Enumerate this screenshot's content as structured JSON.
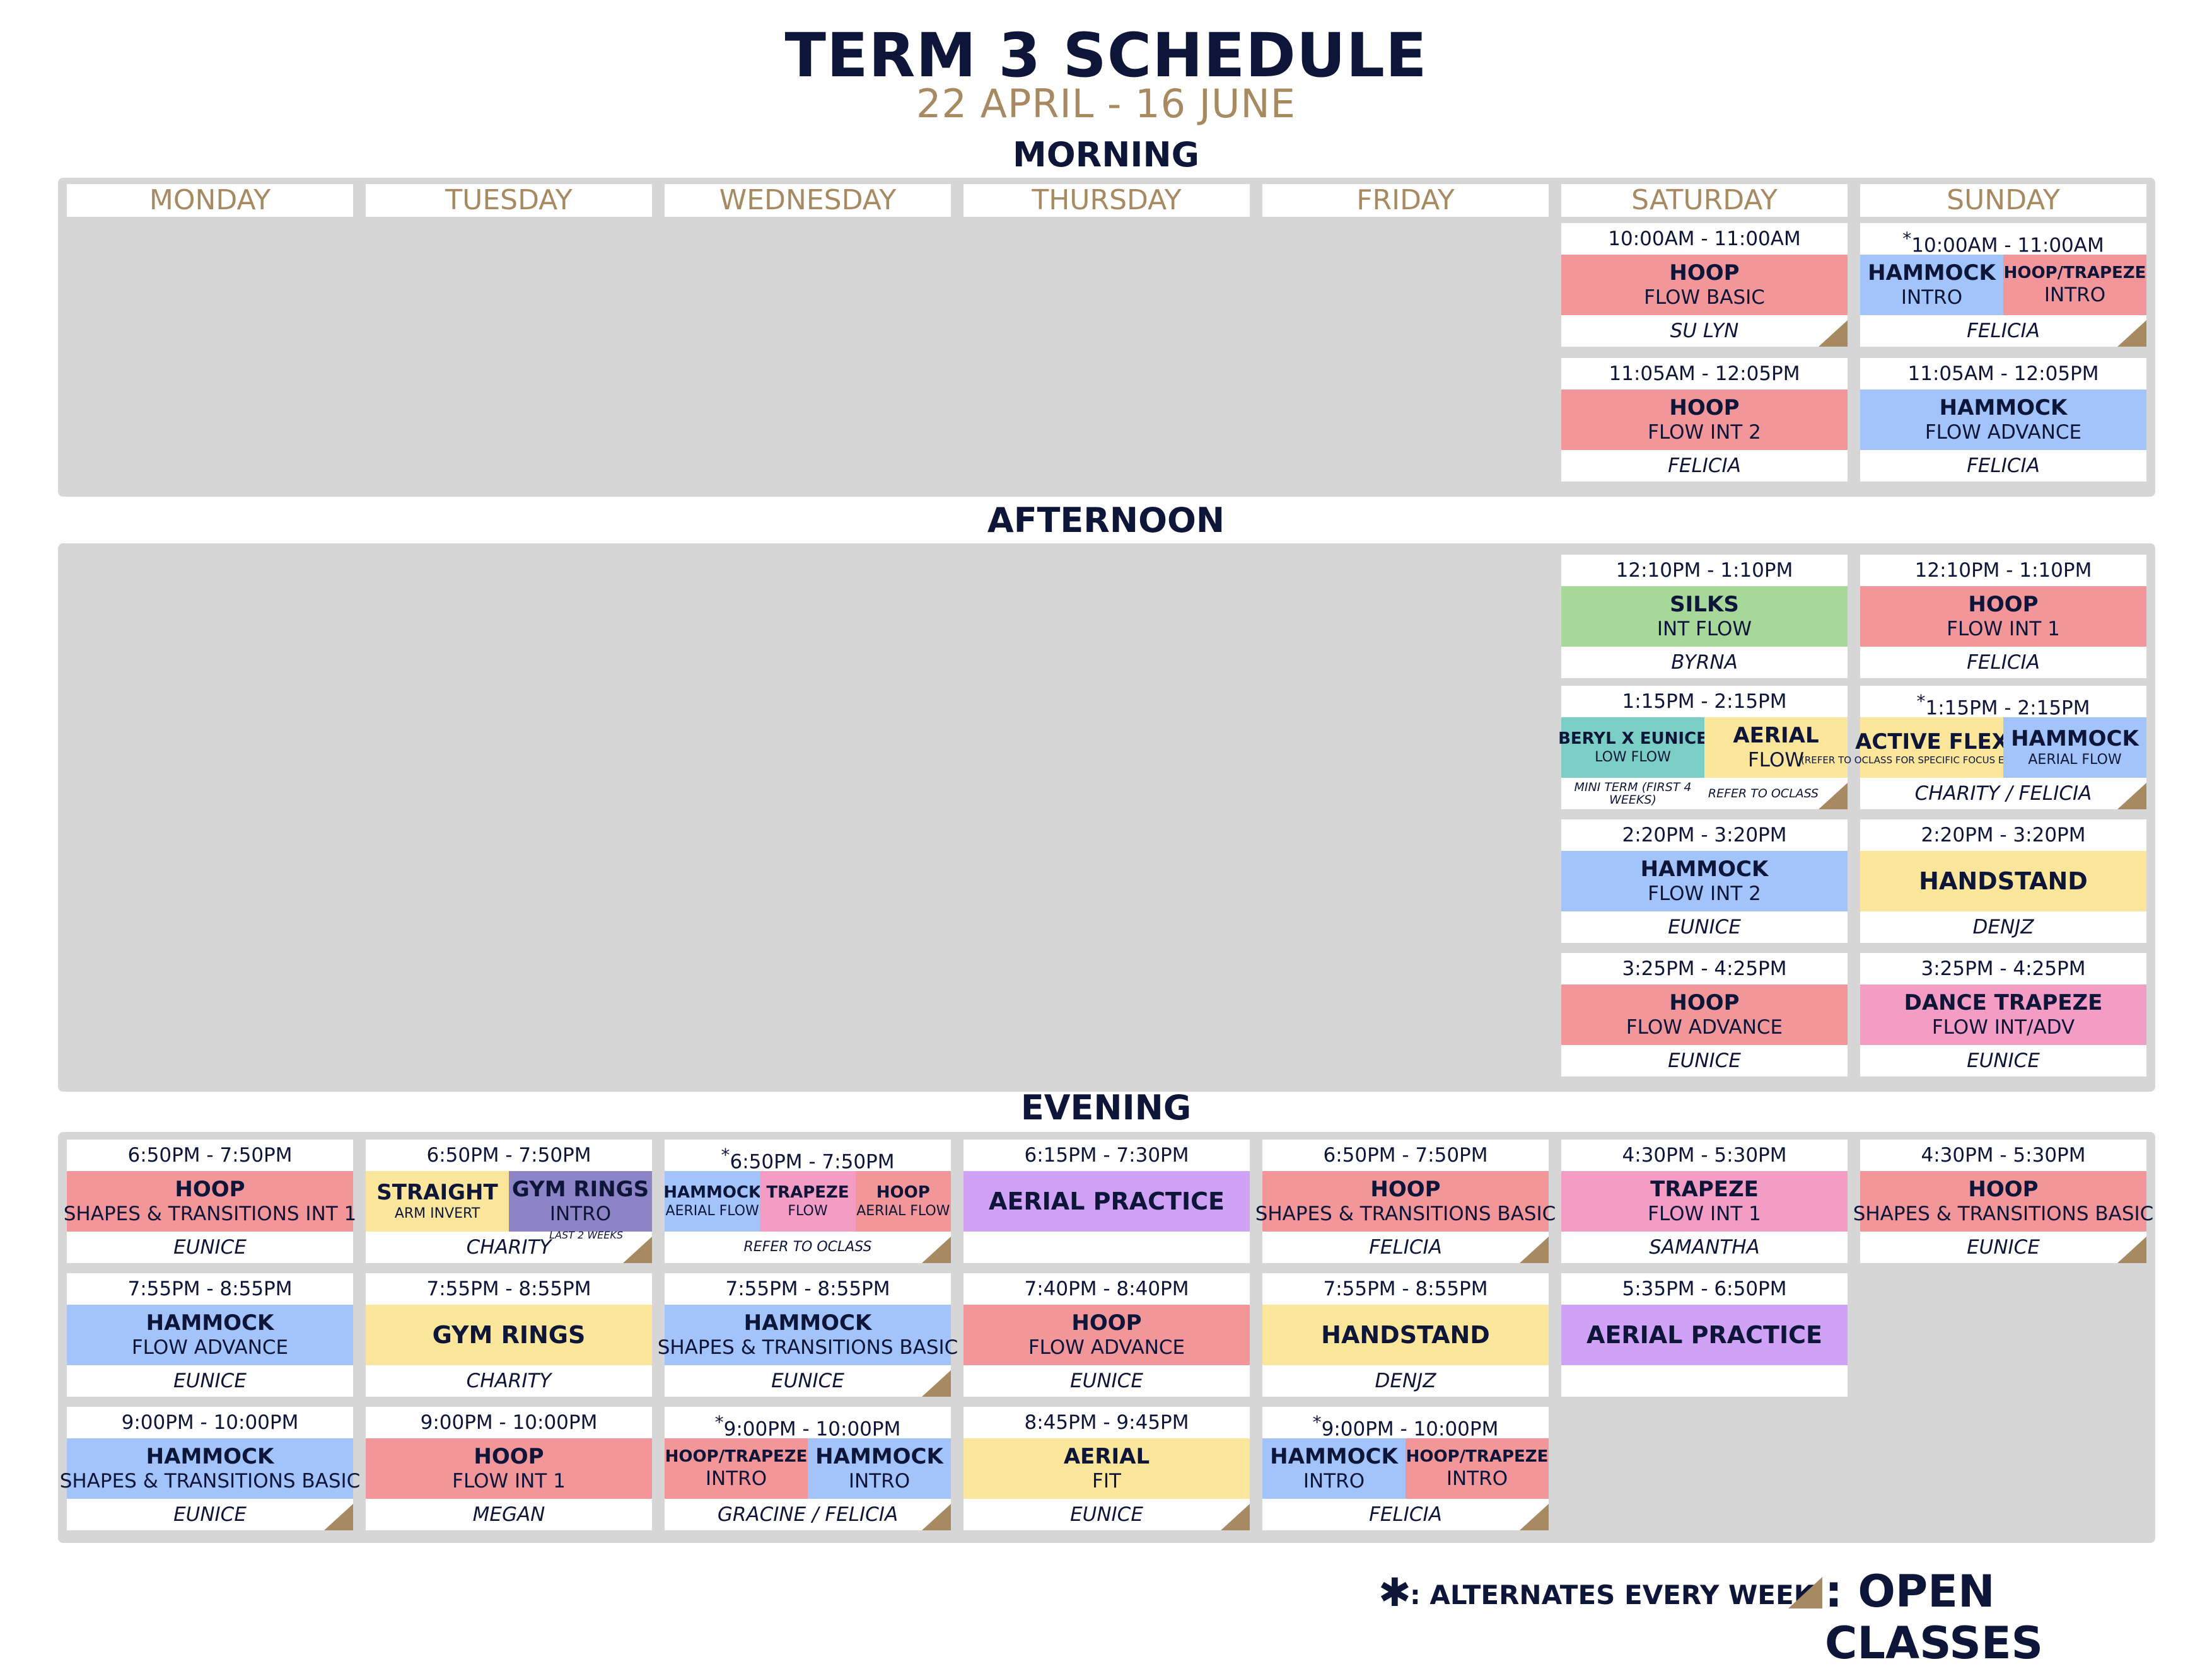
{
  "header": {
    "title": "TERM 3 SCHEDULE",
    "dates": "22 APRIL - 16 JUNE"
  },
  "sections": {
    "morning": "MORNING",
    "afternoon": "AFTERNOON",
    "evening": "EVENING"
  },
  "days": [
    "MONDAY",
    "TUESDAY",
    "WEDNESDAY",
    "THURSDAY",
    "FRIDAY",
    "SATURDAY",
    "SUNDAY"
  ],
  "colors": {
    "navy": "#0d1538",
    "gold": "#a88a62",
    "panel": "#d6d6d6",
    "pink": "#f2969a",
    "green": "#a6d89a",
    "blue": "#a2c4fa",
    "yellow": "#fce69c",
    "teal": "#7acec4",
    "magenta": "#f39cc4",
    "purple": "#cfa2f6",
    "violet": "#8c84c6"
  },
  "classes": [
    {
      "id": "sat-m1",
      "day": "SATURDAY",
      "time": "10:00AM - 11:00AM",
      "instructor": "SU LYN",
      "open": true,
      "segments": [
        {
          "name": "HOOP",
          "level": "FLOW BASIC",
          "color": "pink"
        }
      ]
    },
    {
      "id": "sun-m1",
      "day": "SUNDAY",
      "time": "10:00AM - 11:00AM",
      "alternates": true,
      "instructor": "FELICIA",
      "open": true,
      "segments": [
        {
          "name": "HAMMOCK",
          "level": "INTRO",
          "color": "blue"
        },
        {
          "name": "HOOP/TRAPEZE",
          "level": "INTRO",
          "color": "pink"
        }
      ]
    },
    {
      "id": "sat-m2",
      "day": "SATURDAY",
      "time": "11:05AM - 12:05PM",
      "instructor": "FELICIA",
      "segments": [
        {
          "name": "HOOP",
          "level": "FLOW INT 2",
          "color": "pink"
        }
      ]
    },
    {
      "id": "sun-m2",
      "day": "SUNDAY",
      "time": "11:05AM - 12:05PM",
      "instructor": "FELICIA",
      "segments": [
        {
          "name": "HAMMOCK",
          "level": "FLOW ADVANCE",
          "color": "blue"
        }
      ]
    },
    {
      "id": "sat-a1",
      "day": "SATURDAY",
      "time": "12:10PM - 1:10PM",
      "instructor": "BYRNA",
      "segments": [
        {
          "name": "SILKS",
          "level": "INT FLOW",
          "color": "green"
        }
      ]
    },
    {
      "id": "sun-a1",
      "day": "SUNDAY",
      "time": "12:10PM - 1:10PM",
      "instructor": "FELICIA",
      "segments": [
        {
          "name": "HOOP",
          "level": "FLOW INT 1",
          "color": "pink"
        }
      ]
    },
    {
      "id": "sat-a2",
      "day": "SATURDAY",
      "time": "1:15PM - 2:15PM",
      "open": true,
      "segments": [
        {
          "name": "BERYL X EUNICE",
          "level": "LOW FLOW",
          "color": "teal",
          "note": "MINI TERM (FIRST 4 WEEKS)"
        },
        {
          "name": "AERIAL",
          "level": "FLOW",
          "color": "yellow",
          "note": "REFER TO OCLASS"
        }
      ]
    },
    {
      "id": "sun-a2",
      "day": "SUNDAY",
      "time": "1:15PM - 2:15PM",
      "alternates": true,
      "instructor": "CHARITY / FELICIA",
      "open": true,
      "segments": [
        {
          "name": "ACTIVE FLEX",
          "level": "(REFER TO OCLASS FOR SPECIFIC FOCUS EVERY WEEK)",
          "color": "yellow"
        },
        {
          "name": "HAMMOCK",
          "level": "AERIAL FLOW",
          "color": "blue"
        }
      ]
    },
    {
      "id": "sat-a3",
      "day": "SATURDAY",
      "time": "2:20PM - 3:20PM",
      "instructor": "EUNICE",
      "segments": [
        {
          "name": "HAMMOCK",
          "level": "FLOW INT 2",
          "color": "blue"
        }
      ]
    },
    {
      "id": "sun-a3",
      "day": "SUNDAY",
      "time": "2:20PM - 3:20PM",
      "instructor": "DENJZ",
      "segments": [
        {
          "name": "HANDSTAND",
          "level": "",
          "color": "yellow"
        }
      ]
    },
    {
      "id": "sat-a4",
      "day": "SATURDAY",
      "time": "3:25PM - 4:25PM",
      "instructor": "EUNICE",
      "segments": [
        {
          "name": "HOOP",
          "level": "FLOW ADVANCE",
          "color": "pink"
        }
      ]
    },
    {
      "id": "sun-a4",
      "day": "SUNDAY",
      "time": "3:25PM - 4:25PM",
      "instructor": "EUNICE",
      "segments": [
        {
          "name": "DANCE TRAPEZE",
          "level": "FLOW INT/ADV",
          "color": "magenta"
        }
      ]
    },
    {
      "id": "mon-e1",
      "day": "MONDAY",
      "time": "6:50PM - 7:50PM",
      "instructor": "EUNICE",
      "segments": [
        {
          "name": "HOOP",
          "level": "SHAPES & TRANSITIONS INT 1",
          "color": "pink"
        }
      ]
    },
    {
      "id": "tue-e1",
      "day": "TUESDAY",
      "time": "6:50PM - 7:50PM",
      "instructor": "CHARITY",
      "open": true,
      "subnote": "LAST 2 WEEKS",
      "segments": [
        {
          "name": "STRAIGHT",
          "level": "ARM INVERT",
          "color": "yellow"
        },
        {
          "name": "GYM RINGS",
          "level": "INTRO",
          "color": "violet"
        }
      ]
    },
    {
      "id": "wed-e1",
      "day": "WEDNESDAY",
      "time": "6:50PM - 7:50PM",
      "alternates": true,
      "instructor": "REFER TO OCLASS",
      "open": true,
      "segments": [
        {
          "name": "HAMMOCK",
          "level": "AERIAL FLOW",
          "color": "blue"
        },
        {
          "name": "TRAPEZE",
          "level": "FLOW",
          "color": "magenta"
        },
        {
          "name": "HOOP",
          "level": "AERIAL FLOW",
          "color": "pink"
        }
      ]
    },
    {
      "id": "thu-e1",
      "day": "THURSDAY",
      "time": "6:15PM - 7:30PM",
      "instructor": "",
      "segments": [
        {
          "name": "AERIAL PRACTICE",
          "level": "",
          "color": "purple"
        }
      ]
    },
    {
      "id": "fri-e1",
      "day": "FRIDAY",
      "time": "6:50PM - 7:50PM",
      "instructor": "FELICIA",
      "open": true,
      "segments": [
        {
          "name": "HOOP",
          "level": "SHAPES & TRANSITIONS BASIC",
          "color": "pink"
        }
      ]
    },
    {
      "id": "sat-e1",
      "day": "SATURDAY",
      "time": "4:30PM - 5:30PM",
      "instructor": "SAMANTHA",
      "segments": [
        {
          "name": "TRAPEZE",
          "level": "FLOW INT 1",
          "color": "magenta"
        }
      ]
    },
    {
      "id": "sun-e1",
      "day": "SUNDAY",
      "time": "4:30PM - 5:30PM",
      "instructor": "EUNICE",
      "open": true,
      "segments": [
        {
          "name": "HOOP",
          "level": "SHAPES & TRANSITIONS BASIC",
          "color": "pink"
        }
      ]
    },
    {
      "id": "mon-e2",
      "day": "MONDAY",
      "time": "7:55PM - 8:55PM",
      "instructor": "EUNICE",
      "segments": [
        {
          "name": "HAMMOCK",
          "level": "FLOW ADVANCE",
          "color": "blue"
        }
      ]
    },
    {
      "id": "tue-e2",
      "day": "TUESDAY",
      "time": "7:55PM - 8:55PM",
      "instructor": "CHARITY",
      "segments": [
        {
          "name": "GYM RINGS",
          "level": "",
          "color": "yellow"
        }
      ]
    },
    {
      "id": "wed-e2",
      "day": "WEDNESDAY",
      "time": "7:55PM - 8:55PM",
      "instructor": "EUNICE",
      "open": true,
      "segments": [
        {
          "name": "HAMMOCK",
          "level": "SHAPES & TRANSITIONS BASIC",
          "color": "blue"
        }
      ]
    },
    {
      "id": "thu-e2",
      "day": "THURSDAY",
      "time": "7:40PM - 8:40PM",
      "instructor": "EUNICE",
      "segments": [
        {
          "name": "HOOP",
          "level": "FLOW ADVANCE",
          "color": "pink"
        }
      ]
    },
    {
      "id": "fri-e2",
      "day": "FRIDAY",
      "time": "7:55PM - 8:55PM",
      "instructor": "DENJZ",
      "segments": [
        {
          "name": "HANDSTAND",
          "level": "",
          "color": "yellow"
        }
      ]
    },
    {
      "id": "sat-e2",
      "day": "SATURDAY",
      "time": "5:35PM - 6:50PM",
      "instructor": "",
      "segments": [
        {
          "name": "AERIAL PRACTICE",
          "level": "",
          "color": "purple"
        }
      ]
    },
    {
      "id": "mon-e3",
      "day": "MONDAY",
      "time": "9:00PM - 10:00PM",
      "instructor": "EUNICE",
      "open": true,
      "segments": [
        {
          "name": "HAMMOCK",
          "level": "SHAPES & TRANSITIONS BASIC",
          "color": "blue"
        }
      ]
    },
    {
      "id": "tue-e3",
      "day": "TUESDAY",
      "time": "9:00PM - 10:00PM",
      "instructor": "MEGAN",
      "segments": [
        {
          "name": "HOOP",
          "level": "FLOW INT 1",
          "color": "pink"
        }
      ]
    },
    {
      "id": "wed-e3",
      "day": "WEDNESDAY",
      "time": "9:00PM - 10:00PM",
      "alternates": true,
      "instructor": "GRACINE / FELICIA",
      "open": true,
      "segments": [
        {
          "name": "HOOP/TRAPEZE",
          "level": "INTRO",
          "color": "pink"
        },
        {
          "name": "HAMMOCK",
          "level": "INTRO",
          "color": "blue"
        }
      ]
    },
    {
      "id": "thu-e3",
      "day": "THURSDAY",
      "time": "8:45PM - 9:45PM",
      "instructor": "EUNICE",
      "open": true,
      "segments": [
        {
          "name": "AERIAL",
          "level": "FIT",
          "color": "yellow"
        }
      ]
    },
    {
      "id": "fri-e3",
      "day": "FRIDAY",
      "time": "9:00PM - 10:00PM",
      "alternates": true,
      "instructor": "FELICIA",
      "open": true,
      "segments": [
        {
          "name": "HAMMOCK",
          "level": "INTRO",
          "color": "blue"
        },
        {
          "name": "HOOP/TRAPEZE",
          "level": "INTRO",
          "color": "pink"
        }
      ]
    }
  ],
  "legend": {
    "alternates_symbol": "✱",
    "alternates_text": ": ALTERNATES EVERY WEEK",
    "open_text": ": OPEN CLASSES"
  }
}
